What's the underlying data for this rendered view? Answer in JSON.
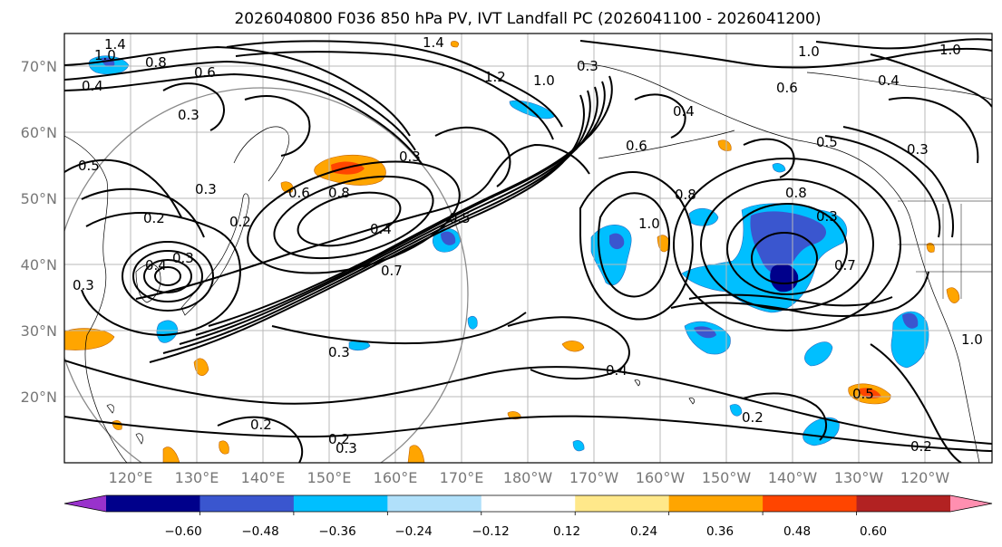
{
  "title": "2026040800 F036 850 hPa PV, IVT Landfall PC (2026041100 - 2026041200)",
  "lat_labels": [
    "70°N",
    "60°N",
    "50°N",
    "40°N",
    "30°N",
    "20°N"
  ],
  "lon_labels": [
    "120°E",
    "130°E",
    "140°E",
    "150°E",
    "160°E",
    "170°E",
    "180°W",
    "170°W",
    "160°W",
    "150°W",
    "140°W",
    "130°W",
    "120°W"
  ],
  "colorbar": {
    "colors": [
      "#9932cc",
      "#00008b",
      "#3a56cf",
      "#00bfff",
      "#b0e0fa",
      "#ffffff",
      "#ffe88a",
      "#ffa500",
      "#ff4500",
      "#b22222",
      "#ff8fb0"
    ],
    "tick_labels": [
      "−0.60",
      "−0.48",
      "−0.36",
      "−0.24",
      "−0.12",
      "0.12",
      "0.24",
      "0.36",
      "0.48",
      "0.60"
    ]
  },
  "contour_labels": [
    {
      "text": "1.4"
    },
    {
      "text": "1.0"
    },
    {
      "text": "0.8"
    },
    {
      "text": "0.4"
    },
    {
      "text": "0.6"
    },
    {
      "text": "0.3"
    },
    {
      "text": "0.5"
    },
    {
      "text": "0.3"
    },
    {
      "text": "0.2"
    },
    {
      "text": "0.2"
    },
    {
      "text": "0.3"
    },
    {
      "text": "0.6"
    },
    {
      "text": "0.8"
    },
    {
      "text": "0.3"
    },
    {
      "text": "0.4"
    },
    {
      "text": "0.5"
    },
    {
      "text": "0.7"
    },
    {
      "text": "0.3"
    },
    {
      "text": "1.2"
    },
    {
      "text": "1.0"
    },
    {
      "text": "1.4"
    },
    {
      "text": "0.3"
    },
    {
      "text": "1.0"
    },
    {
      "text": "0.6"
    },
    {
      "text": "0.4"
    },
    {
      "text": "0.8"
    },
    {
      "text": "1.0"
    },
    {
      "text": "0.8"
    },
    {
      "text": "0.7"
    },
    {
      "text": "0.4"
    },
    {
      "text": "0.3"
    },
    {
      "text": "0.4"
    },
    {
      "text": "0.2"
    },
    {
      "text": "0.2"
    },
    {
      "text": "0.3"
    },
    {
      "text": "0.2"
    },
    {
      "text": "0.2"
    },
    {
      "text": "1.0"
    },
    {
      "text": "0.5"
    },
    {
      "text": "0.4"
    },
    {
      "text": "0.5"
    },
    {
      "text": "0.6"
    },
    {
      "text": "0.3"
    },
    {
      "text": "1.0"
    },
    {
      "text": "0.3"
    }
  ]
}
